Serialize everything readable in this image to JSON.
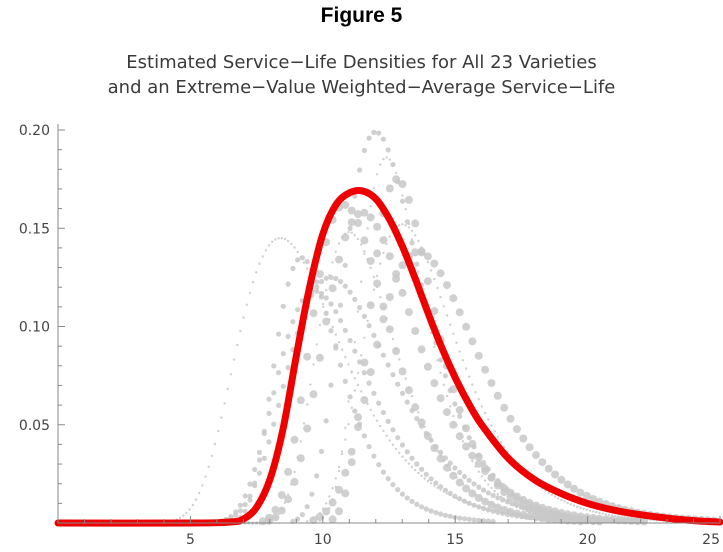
{
  "figure_label": "Figure 5",
  "chart_data": {
    "type": "line",
    "title_line1": "Estimated Service−Life Densities for All 23 Varieties",
    "title_line2": "and an Extreme−Value Weighted−Average Service−Life",
    "xlabel": "",
    "ylabel": "",
    "xlim": [
      0,
      25
    ],
    "ylim": [
      0,
      0.2
    ],
    "xticks": [
      5,
      10,
      15,
      20,
      25
    ],
    "yticks": [
      0.05,
      0.1,
      0.15,
      0.2
    ],
    "ytick_labels": [
      "0.05",
      "0.10",
      "0.15",
      "0.20"
    ],
    "xtick_labels": [
      "5",
      "10",
      "15",
      "20",
      "25"
    ],
    "grid": false,
    "colors": {
      "weighted_average": "#ee0000",
      "varieties": "#c8c8c8"
    },
    "series": [
      {
        "style": "thick red line",
        "x": [
          0,
          5,
          6.5,
          7,
          7.5,
          8,
          8.5,
          9,
          9.5,
          10,
          10.5,
          11,
          11.5,
          12,
          12.5,
          13,
          13.5,
          14,
          14.5,
          15,
          15.5,
          16,
          17,
          18,
          19,
          20,
          21,
          22,
          23,
          24,
          25
        ],
        "values": [
          0,
          0,
          0.0005,
          0.002,
          0.008,
          0.022,
          0.048,
          0.085,
          0.12,
          0.147,
          0.162,
          0.168,
          0.169,
          0.165,
          0.155,
          0.141,
          0.124,
          0.106,
          0.089,
          0.074,
          0.061,
          0.05,
          0.033,
          0.022,
          0.015,
          0.01,
          0.0065,
          0.0042,
          0.0025,
          0.0012,
          0.0005
        ]
      },
      {
        "style": "gray dotted",
        "peak_x": 12.4,
        "peak_y": 0.186
      },
      {
        "style": "gray dotted",
        "peak_x": 12.0,
        "peak_y": 0.199
      },
      {
        "style": "gray dotted",
        "peak_x": 11.5,
        "peak_y": 0.158
      },
      {
        "style": "gray dotted",
        "peak_x": 8.4,
        "peak_y": 0.145
      },
      {
        "style": "gray dotted",
        "peak_x": 9.2,
        "peak_y": 0.135
      },
      {
        "style": "gray dotted",
        "peak_x": 10.8,
        "peak_y": 0.162
      },
      {
        "style": "gray dotted",
        "peak_x": 13.0,
        "peak_y": 0.152
      },
      {
        "style": "gray dotted",
        "peak_x": 10.3,
        "peak_y": 0.125
      },
      {
        "style": "gray dotted",
        "peak_x": 12.8,
        "peak_y": 0.175
      },
      {
        "style": "gray dotted",
        "peak_x": 11.0,
        "peak_y": 0.148
      },
      {
        "style": "gray dotted",
        "peak_x": 9.7,
        "peak_y": 0.118
      },
      {
        "style": "gray dotted",
        "peak_x": 13.6,
        "peak_y": 0.138
      }
    ]
  }
}
